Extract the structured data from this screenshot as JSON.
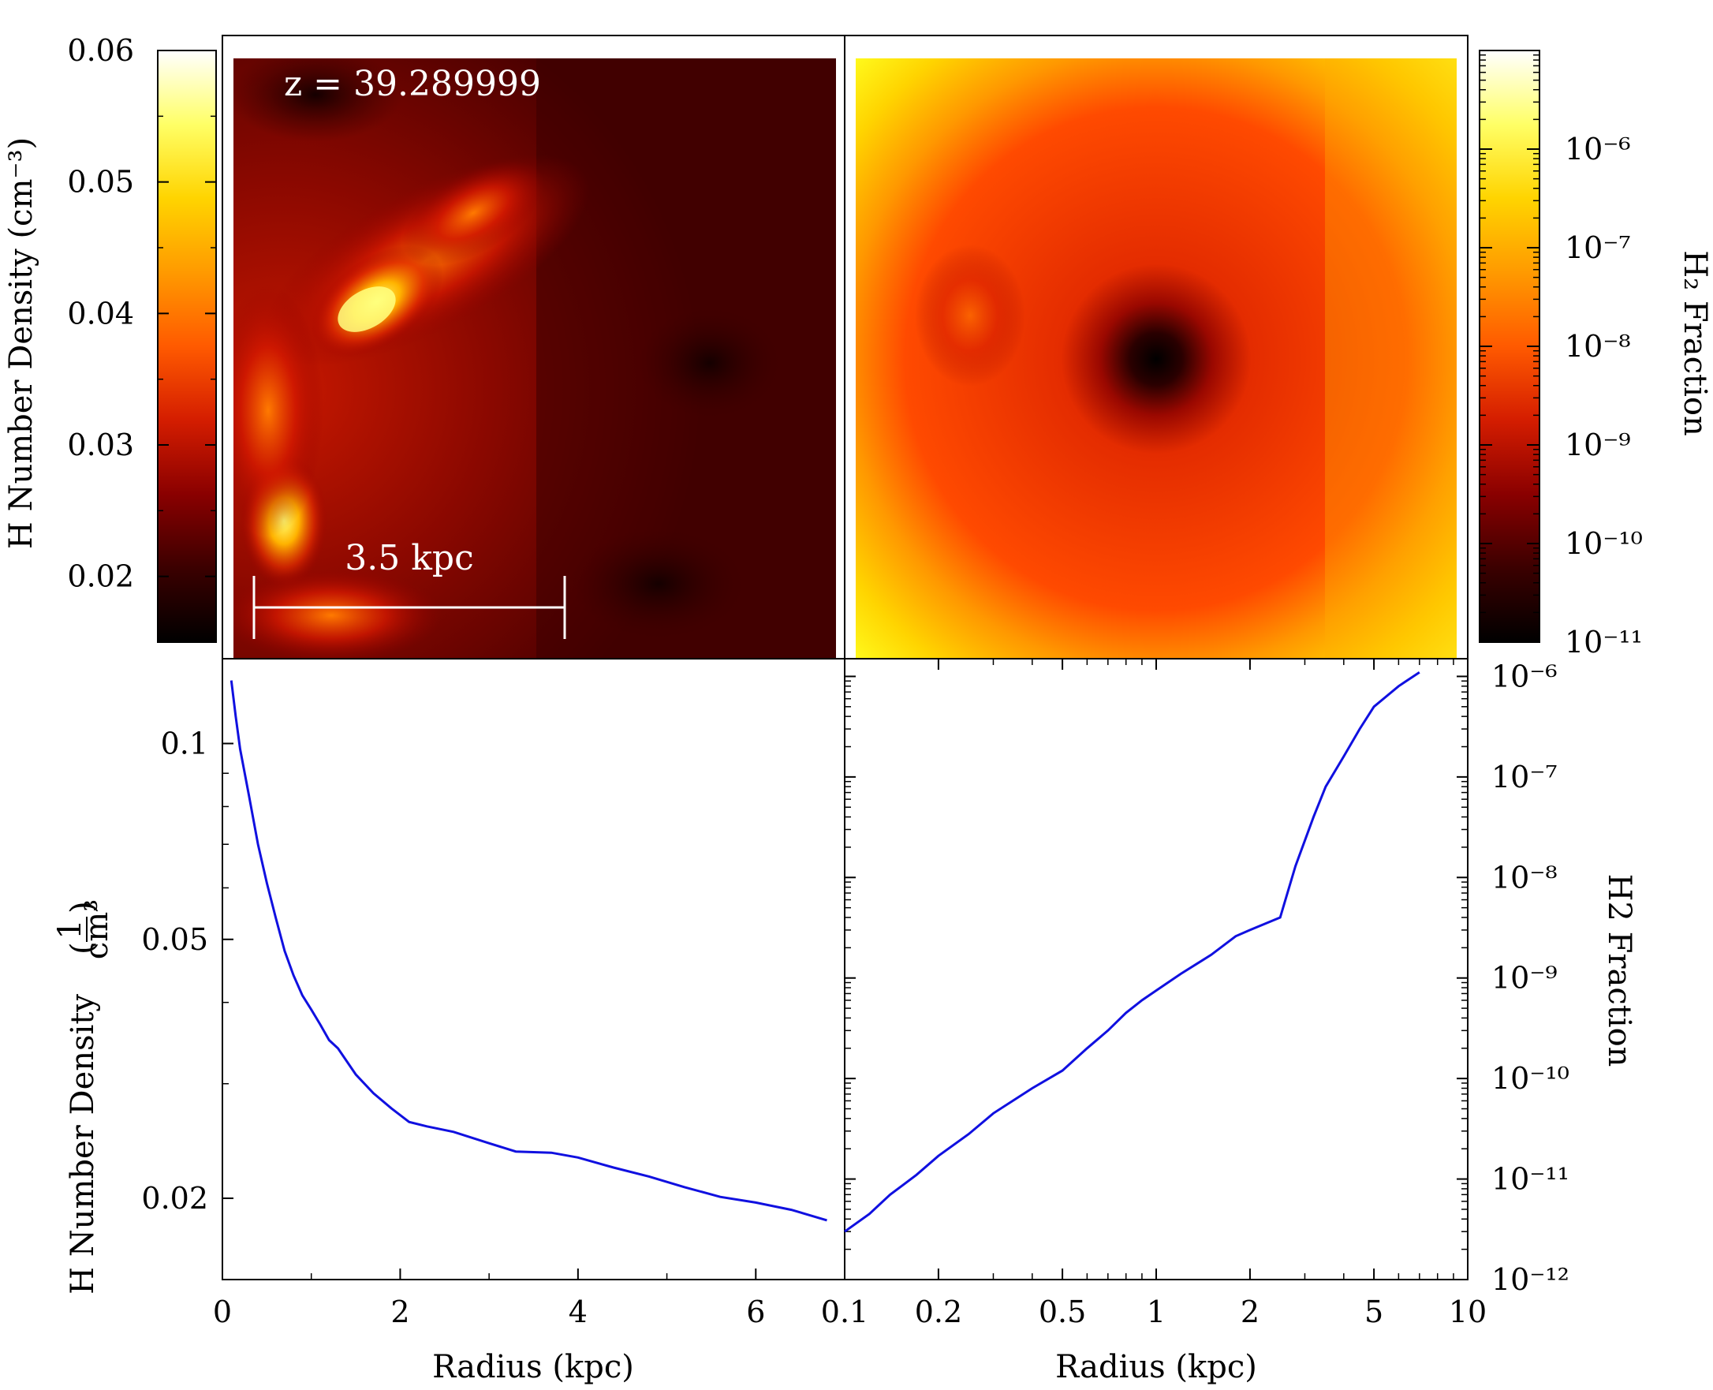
{
  "chart_data": [
    {
      "type": "heatmap",
      "annotation": "z = 39.289999",
      "scale_bar_label": "3.5 kpc",
      "colorbar": {
        "label": "H Number Density (cm⁻³)",
        "range": [
          0.015,
          0.06
        ],
        "ticks": [
          "0.06",
          "0.05",
          "0.04",
          "0.03",
          "0.02"
        ],
        "tick_values": [
          0.06,
          0.05,
          0.04,
          0.03,
          0.02
        ],
        "colormap": [
          "#000000",
          "#3b0000",
          "#8a0000",
          "#d41d00",
          "#ff5a00",
          "#ff9a00",
          "#ffd400",
          "#ffff66",
          "#ffffff"
        ]
      }
    },
    {
      "type": "heatmap",
      "colorbar": {
        "label": "H₂ Fraction",
        "scale": "log",
        "range": [
          1e-11,
          1e-05
        ],
        "ticks": [
          "10⁻⁶",
          "10⁻⁷",
          "10⁻⁸",
          "10⁻⁹",
          "10⁻¹⁰",
          "10⁻¹¹"
        ],
        "tick_values": [
          1e-06,
          1e-07,
          1e-08,
          1e-09,
          1e-10,
          1e-11
        ],
        "colormap": [
          "#000000",
          "#3b0000",
          "#8a0000",
          "#d41d00",
          "#ff5a00",
          "#ff9a00",
          "#ffd400",
          "#ffff66",
          "#ffffff"
        ]
      }
    },
    {
      "type": "line",
      "xlabel": "Radius  (kpc)",
      "ylabel": "H Number Density  (1/cm³)",
      "xlim": [
        0,
        7
      ],
      "ylim": [
        0.015,
        0.135
      ],
      "yscale": "log",
      "xticks": [
        "0",
        "2",
        "4",
        "6"
      ],
      "yticks": [
        "0.1",
        "0.05",
        "0.02"
      ],
      "line_color": "#1010e0",
      "x": [
        0.1,
        0.15,
        0.2,
        0.3,
        0.4,
        0.5,
        0.6,
        0.7,
        0.8,
        0.9,
        1.0,
        1.1,
        1.2,
        1.3,
        1.5,
        1.7,
        1.9,
        2.1,
        2.3,
        2.6,
        3.0,
        3.3,
        3.7,
        4.0,
        4.4,
        4.8,
        5.2,
        5.6,
        6.0,
        6.4,
        6.8
      ],
      "y": [
        0.125,
        0.11,
        0.098,
        0.083,
        0.07,
        0.061,
        0.054,
        0.048,
        0.044,
        0.041,
        0.039,
        0.037,
        0.035,
        0.034,
        0.031,
        0.029,
        0.0275,
        0.0262,
        0.0258,
        0.0253,
        0.0243,
        0.0236,
        0.0235,
        0.0231,
        0.0223,
        0.0216,
        0.0208,
        0.0201,
        0.0197,
        0.0192,
        0.0185
      ]
    },
    {
      "type": "line",
      "xlabel": "Radius  (kpc)",
      "ylabel": "H2 Fraction",
      "xscale": "log",
      "yscale": "log",
      "xlim": [
        0.1,
        10
      ],
      "ylim": [
        1e-12,
        1.5e-06
      ],
      "xticks": [
        "0.1",
        "0.2",
        "0.5",
        "1",
        "2",
        "5",
        "10"
      ],
      "xtick_values": [
        0.1,
        0.2,
        0.5,
        1,
        2,
        5,
        10
      ],
      "yticks": [
        "10⁻⁶",
        "10⁻⁷",
        "10⁻⁸",
        "10⁻⁹",
        "10⁻¹⁰",
        "10⁻¹¹",
        "10⁻¹²"
      ],
      "ytick_values": [
        1e-06,
        1e-07,
        1e-08,
        1e-09,
        1e-10,
        1e-11,
        1e-12
      ],
      "line_color": "#1010e0",
      "x": [
        0.1,
        0.12,
        0.14,
        0.17,
        0.2,
        0.25,
        0.3,
        0.4,
        0.5,
        0.6,
        0.7,
        0.8,
        0.9,
        1.0,
        1.2,
        1.5,
        1.8,
        2.0,
        2.5,
        2.8,
        3.2,
        3.5,
        4.0,
        4.5,
        5.0,
        6.0,
        7.0
      ],
      "y": [
        3e-12,
        4.5e-12,
        7e-12,
        1.1e-11,
        1.7e-11,
        2.8e-11,
        4.5e-11,
        8e-11,
        1.2e-10,
        2e-10,
        3e-10,
        4.5e-10,
        6e-10,
        7.5e-10,
        1.1e-09,
        1.7e-09,
        2.6e-09,
        3e-09,
        4e-09,
        1.3e-08,
        4e-08,
        8e-08,
        1.6e-07,
        3e-07,
        5e-07,
        8e-07,
        1.1e-06
      ]
    }
  ]
}
